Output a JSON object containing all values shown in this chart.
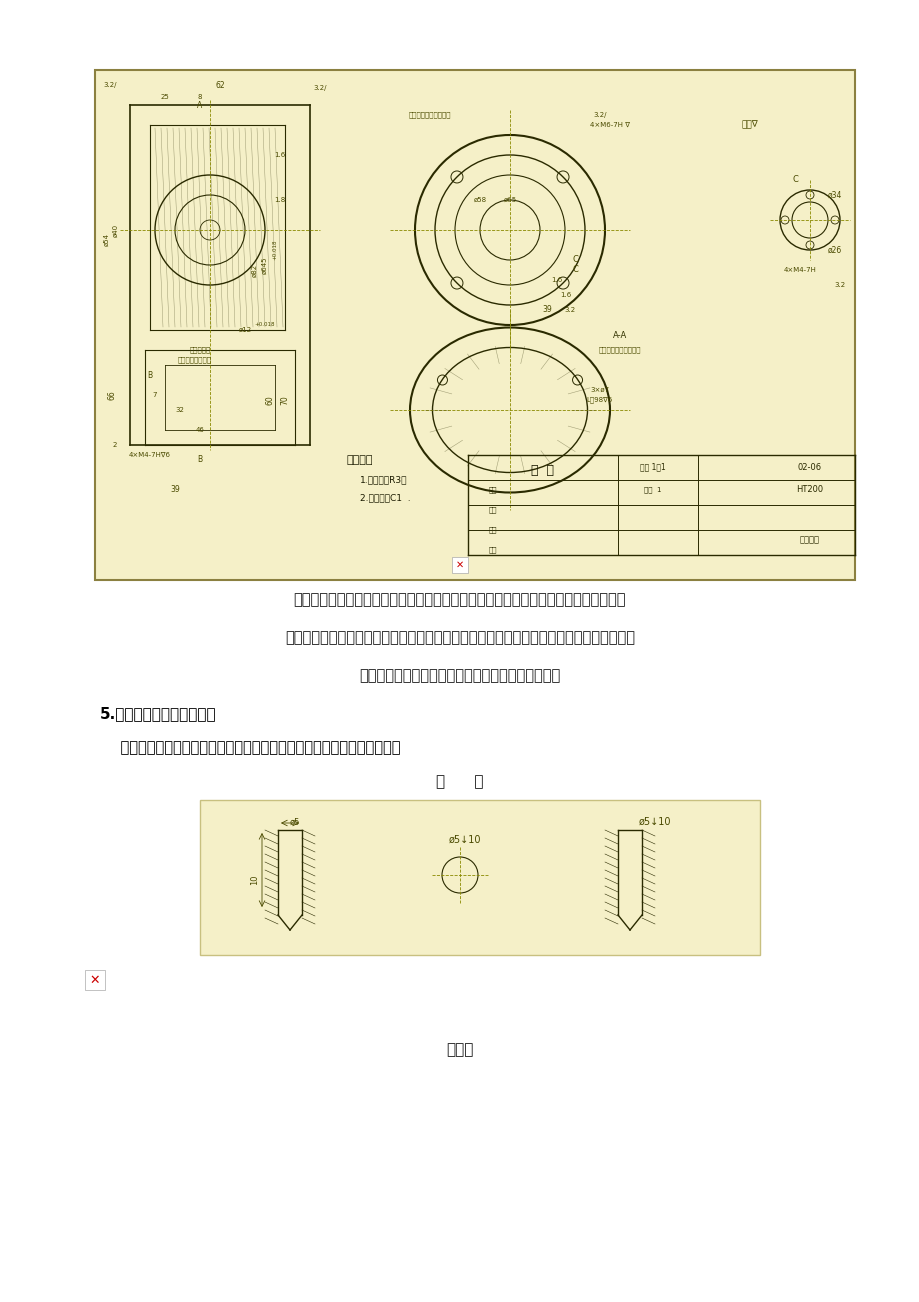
{
  "page_bg": "#ffffff",
  "drawing_bg": "#f5f0c8",
  "drawing_border": "#8b8040",
  "page_width": 9.2,
  "page_height": 13.02,
  "title_block_title": "箱  体",
  "title_block_scale": "比例 1：1",
  "title_block_num": "02-06",
  "title_block_material": "HT200",
  "title_block_company": "（厂名）",
  "tech_req_title": "技术要求",
  "tech_req_1": "1.未注圆角R3。",
  "tech_req_2": "2.未注倒角C1  .",
  "para1": "在标注尺寸方面，通常选用设计上要求的轴线、重要的安装面、接触面（或加工面）、",
  "para2": "箱体某些主要结构的对称面（宽度、长度）等作为尺寸基准。对于箱体上需要切削加工的部",
  "para3": "分，应尽可能按便于加工和检验的要求来标注尺寸。",
  "section5_title": "5.零件常见结构的尺寸注法",
  "section5_sub": "    常见孔的尺寸注法（盲孔、螺纹孔、沉孔、锪平孔）；倒角的尺寸注法。",
  "blind_hole_title": "盲      孔",
  "screw_hole_title": "螺纹孔",
  "drawing2_bg": "#f5f0c8",
  "img_placeholder_color": "#cc0000",
  "text_color": "#1a1a1a",
  "bold_text_color": "#000000",
  "dim_color": "#4a4a00",
  "drawing_line_color": "#2a2a00"
}
